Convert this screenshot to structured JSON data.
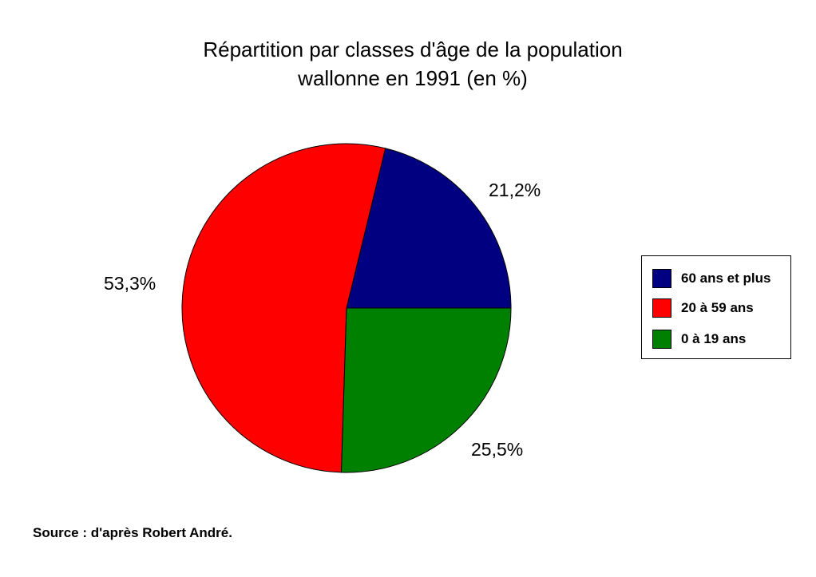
{
  "chart_data": {
    "type": "pie",
    "title": "Répartition par classes d'âge de la population",
    "title_line2": "wallonne en 1991 (en %)",
    "slices": [
      {
        "name": "60 ans et plus",
        "value": 21.2,
        "label": "21,2%",
        "color": "#000080"
      },
      {
        "name": "20 à 59 ans",
        "value": 53.3,
        "label": "53,3%",
        "color": "#ff0000"
      },
      {
        "name": "0 à 19 ans",
        "value": 25.5,
        "label": "25,5%",
        "color": "#008000"
      }
    ],
    "start_angle_deg": 0,
    "direction": "counterclockwise",
    "legend_position": "right"
  },
  "legend": {
    "items": [
      {
        "label": "60 ans et plus",
        "color": "#000080"
      },
      {
        "label": "20 à 59 ans",
        "color": "#ff0000"
      },
      {
        "label": "0 à 19 ans",
        "color": "#008000"
      }
    ]
  },
  "source": "Source : d'après Robert André."
}
